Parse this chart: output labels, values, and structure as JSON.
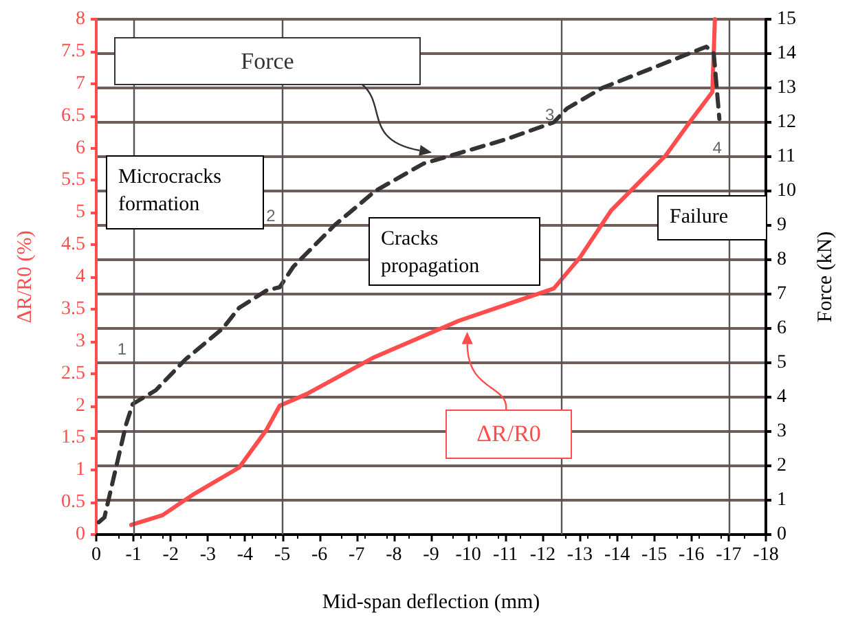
{
  "chart_data": {
    "type": "line",
    "xlabel": "Mid-span deflection (mm)",
    "ylabel": "ΔR/R0 (%)",
    "y2label": "Force (kN)",
    "xlim": [
      0,
      -18
    ],
    "xticks": [
      0,
      -1,
      -2,
      -3,
      -4,
      -5,
      -6,
      -7,
      -8,
      -9,
      -10,
      -11,
      -12,
      -13,
      -14,
      -15,
      -16,
      -17,
      -18
    ],
    "ylim": [
      0,
      8
    ],
    "yticks": [
      0,
      0.5,
      1,
      1.5,
      2,
      2.5,
      3,
      3.5,
      4,
      4.5,
      5,
      5.5,
      6,
      6.5,
      7,
      7.5,
      8
    ],
    "y2lim": [
      0,
      15
    ],
    "y2ticks": [
      0,
      1,
      2,
      3,
      4,
      5,
      6,
      7,
      8,
      9,
      10,
      11,
      12,
      13,
      14,
      15
    ],
    "grid": "y",
    "legend": false,
    "marker": "none",
    "series": [
      {
        "name": "ΔR/R0",
        "color": "#ff4d4d",
        "line_style": "solid",
        "x": [
          -0.94,
          -1.78,
          -2.6,
          -3.84,
          -4.57,
          -4.93,
          -5.65,
          -7.46,
          -9.75,
          -12.3,
          -13.0,
          -13.84,
          -15.3,
          -16.0,
          -16.56,
          -16.63
        ],
        "values": [
          0.15,
          0.3,
          0.62,
          1.04,
          1.62,
          2.0,
          2.18,
          2.75,
          3.32,
          3.82,
          4.3,
          5.03,
          5.88,
          6.44,
          6.87,
          8.0
        ]
      },
      {
        "name": "Force",
        "color": "#333333",
        "line_style": "dashed",
        "axis": "y2",
        "x": [
          -0.07,
          -0.22,
          -0.8,
          -0.98,
          -1.6,
          -2.4,
          -3.4,
          -3.84,
          -4.57,
          -4.93,
          -5.3,
          -5.76,
          -6.4,
          -7.5,
          -8.8,
          -9.75,
          -11.0,
          -12.3,
          -12.65,
          -13.6,
          -15.0,
          -16.4,
          -16.6,
          -16.75
        ],
        "values": [
          0.36,
          0.5,
          3.2,
          3.8,
          4.2,
          5.1,
          6.0,
          6.6,
          7.1,
          7.2,
          7.8,
          8.3,
          9.0,
          10.0,
          10.8,
          11.1,
          11.5,
          12.0,
          12.4,
          13.0,
          13.6,
          14.2,
          14.0,
          12.1
        ]
      }
    ],
    "ref_lines": [
      {
        "axis": "x",
        "value": -1,
        "color": "#555555"
      },
      {
        "axis": "x",
        "value": -5,
        "color": "#555555"
      },
      {
        "axis": "x",
        "value": -12.5,
        "color": "#555555"
      },
      {
        "axis": "x",
        "value": -17,
        "color": "#555555"
      }
    ],
    "annotations": [
      "Microcracks formation",
      "Cracks propagation",
      "Failure",
      {
        "text": "1",
        "x": -1,
        "y": 2.88
      },
      {
        "text": "2",
        "x": -5,
        "y": 4.95
      },
      {
        "text": "3",
        "x": -12.5,
        "y": 6.52
      },
      {
        "text": "4",
        "x": -17,
        "y": 6.01
      }
    ]
  }
}
